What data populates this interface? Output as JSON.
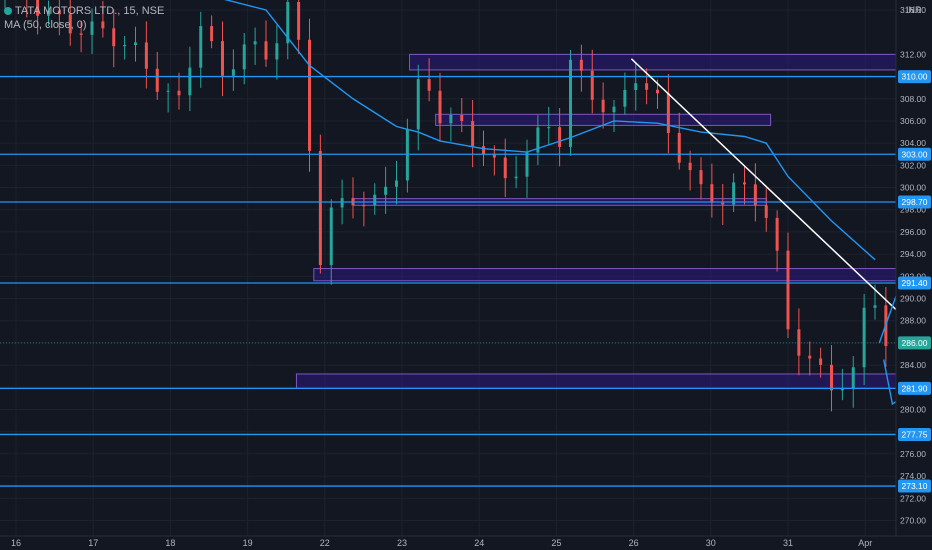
{
  "header": {
    "symbol_line": "TATA MOTORS LTD., 15, NSE",
    "ma_line": "MA (50, close, 0)",
    "currency": "INR"
  },
  "colors": {
    "background": "#131722",
    "grid": "#1e222d",
    "bull": "#26a69a",
    "bear": "#ef5350",
    "level_line": "#2196f3",
    "ma_line": "#2196f3",
    "zone_fill": "#311b92",
    "zone_stroke": "#7e57c2",
    "trendline": "#ffffff",
    "arrow": "#2196f3",
    "axis_text": "#b2b5be",
    "last_price_tag": "#26a69a"
  },
  "chart_data": {
    "type": "candlestick",
    "symbol": "TATA MOTORS LTD.",
    "interval": "15",
    "exchange": "NSE",
    "y_range": [
      268.6,
      316.9
    ],
    "price_ticks": [
      316,
      312,
      310,
      308,
      306,
      304,
      302,
      300,
      298,
      296,
      294,
      292,
      290,
      288,
      286,
      284,
      282,
      280,
      278,
      276,
      274,
      272,
      270
    ],
    "x_ticks": [
      "16",
      "17",
      "18",
      "19",
      "22",
      "23",
      "24",
      "25",
      "26",
      "30",
      "31",
      "Apr"
    ],
    "levels": [
      310.0,
      303.0,
      298.7,
      291.4,
      281.9,
      277.75,
      273.1
    ],
    "level_labels": [
      "310.00",
      "303.00",
      "298.70",
      "291.40",
      "281.90",
      "277.75",
      "273.10"
    ],
    "last_price": 286.0,
    "last_price_label": "286.00",
    "price_path": [
      [
        0,
        318
      ],
      [
        1.5,
        315
      ],
      [
        3,
        312
      ],
      [
        4,
        308
      ],
      [
        4.5,
        315
      ],
      [
        5,
        309
      ],
      [
        5.5,
        313
      ],
      [
        6,
        312
      ],
      [
        6.5,
        317
      ],
      [
        6.9,
        310
      ],
      [
        7.1,
        297
      ],
      [
        7.3,
        292
      ],
      [
        7.5,
        297
      ],
      [
        8,
        299
      ],
      [
        8.5,
        299
      ],
      [
        9,
        302
      ],
      [
        9.3,
        306
      ],
      [
        9.6,
        310
      ],
      [
        10,
        306
      ],
      [
        10.3,
        305.5
      ],
      [
        10.6,
        305
      ],
      [
        11,
        304
      ],
      [
        11.5,
        301
      ],
      [
        12,
        303
      ],
      [
        12.5,
        305
      ],
      [
        12.9,
        303.5
      ],
      [
        13,
        311
      ],
      [
        13.5,
        309
      ],
      [
        14,
        307
      ],
      [
        14.5,
        310
      ],
      [
        15,
        307
      ],
      [
        15.3,
        304
      ],
      [
        15.6,
        302.5
      ],
      [
        16,
        300
      ],
      [
        16.4,
        299.5
      ],
      [
        16.8,
        300
      ],
      [
        17.2,
        299
      ],
      [
        17.5,
        297
      ],
      [
        17.75,
        293
      ],
      [
        18,
        287
      ],
      [
        18.5,
        285
      ],
      [
        19,
        282.5
      ],
      [
        19.5,
        283
      ],
      [
        19.8,
        289
      ],
      [
        20,
        289.5
      ],
      [
        20.3,
        285
      ]
    ],
    "ma_path": [
      [
        3.5,
        320
      ],
      [
        5,
        317
      ],
      [
        6,
        316
      ],
      [
        7,
        311
      ],
      [
        8,
        308
      ],
      [
        9,
        305.5
      ],
      [
        9.5,
        305
      ],
      [
        10,
        304.2
      ],
      [
        11,
        303.5
      ],
      [
        12,
        303.2
      ],
      [
        13,
        304.5
      ],
      [
        14,
        306
      ],
      [
        15,
        305.8
      ],
      [
        16,
        305
      ],
      [
        17,
        304.6
      ],
      [
        17.5,
        304
      ],
      [
        18,
        301
      ],
      [
        19,
        297
      ],
      [
        20,
        293.5
      ]
    ],
    "zones": [
      {
        "x": [
          9.3,
          22.0
        ],
        "y": [
          310.6,
          312.0
        ]
      },
      {
        "x": [
          9.9,
          17.6
        ],
        "y": [
          305.6,
          306.6
        ]
      },
      {
        "x": [
          8.0,
          17.5
        ],
        "y": [
          298.4,
          299.0
        ]
      },
      {
        "x": [
          7.1,
          21.6
        ],
        "y": [
          291.6,
          292.7
        ]
      },
      {
        "x": [
          6.7,
          23.0
        ],
        "y": [
          281.9,
          283.2
        ]
      }
    ],
    "trendline": {
      "from": [
        14.4,
        311.6
      ],
      "to": [
        22.1,
        283.0
      ]
    },
    "projection_arrows": [
      {
        "points": [
          [
            20.1,
            286
          ],
          [
            20.6,
            291.5
          ],
          [
            20.9,
            287
          ],
          [
            21.5,
            294
          ],
          [
            22.2,
            298.7
          ]
        ]
      },
      {
        "points": [
          [
            20.2,
            284.5
          ],
          [
            20.4,
            280.5
          ],
          [
            21.2,
            282.5
          ],
          [
            21.8,
            277.3
          ]
        ]
      }
    ]
  }
}
